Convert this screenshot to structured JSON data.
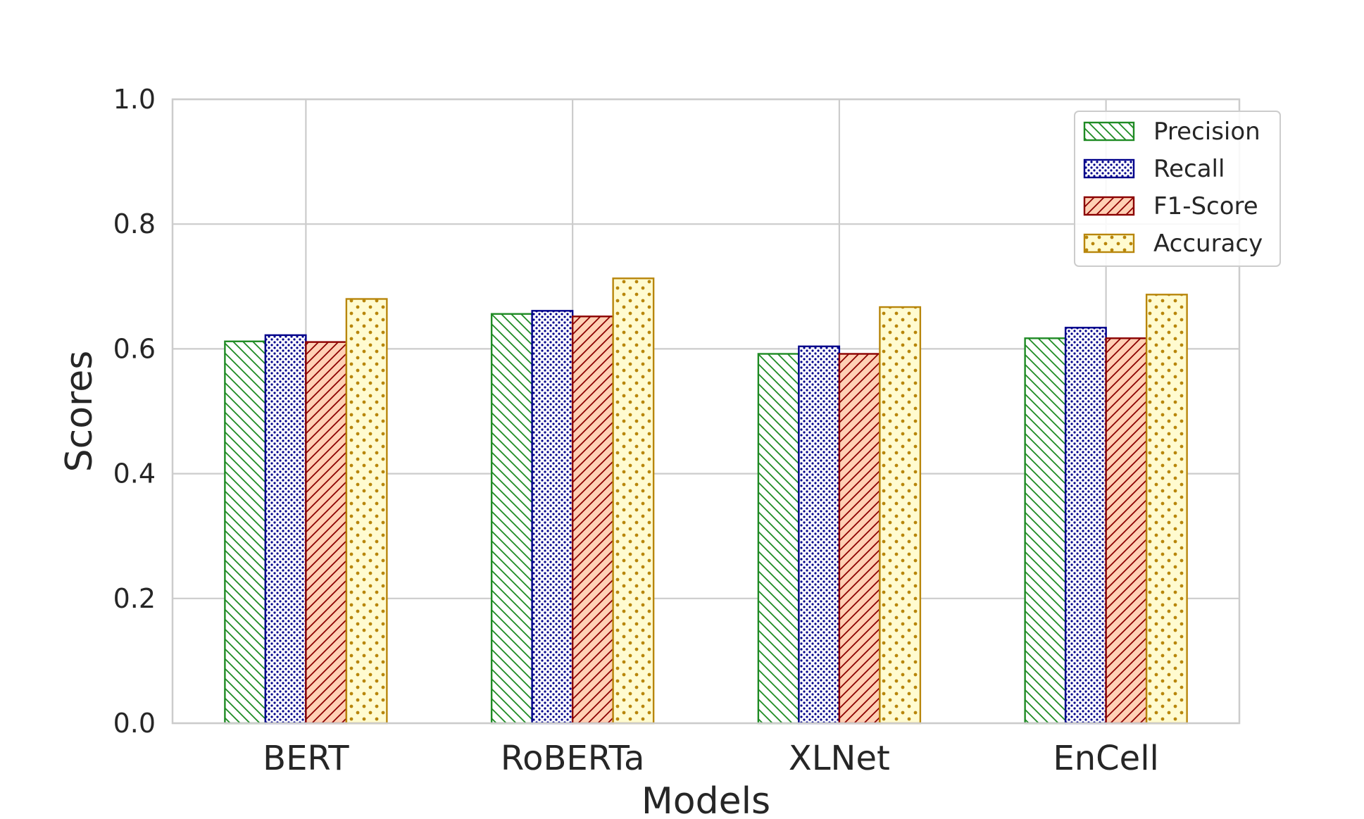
{
  "chart_data": {
    "type": "bar",
    "title": "",
    "xlabel": "Models",
    "ylabel": "Scores",
    "categories": [
      "BERT",
      "RoBERTa",
      "XLNet",
      "EnCell"
    ],
    "ylim": [
      0,
      1.0
    ],
    "yticks": [
      "0.0",
      "0.2",
      "0.4",
      "0.6",
      "0.8",
      "1.0"
    ],
    "grid": true,
    "legend_position": "top-right",
    "series": [
      {
        "name": "Precision",
        "values": [
          0.612,
          0.656,
          0.592,
          0.617
        ],
        "color": "#1f8b24",
        "fill": "#ffffff",
        "pattern": "backslash"
      },
      {
        "name": "Recall",
        "values": [
          0.622,
          0.661,
          0.604,
          0.634
        ],
        "color": "#00008b",
        "fill": "#ffffff",
        "pattern": "dots-dense"
      },
      {
        "name": "F1-Score",
        "values": [
          0.611,
          0.652,
          0.592,
          0.617
        ],
        "color": "#8b0000",
        "fill": "#ffd0b5",
        "pattern": "slash"
      },
      {
        "name": "Accuracy",
        "values": [
          0.68,
          0.713,
          0.667,
          0.687
        ],
        "color": "#b8860b",
        "fill": "#fffbd0",
        "pattern": "dots-sparse"
      }
    ]
  }
}
